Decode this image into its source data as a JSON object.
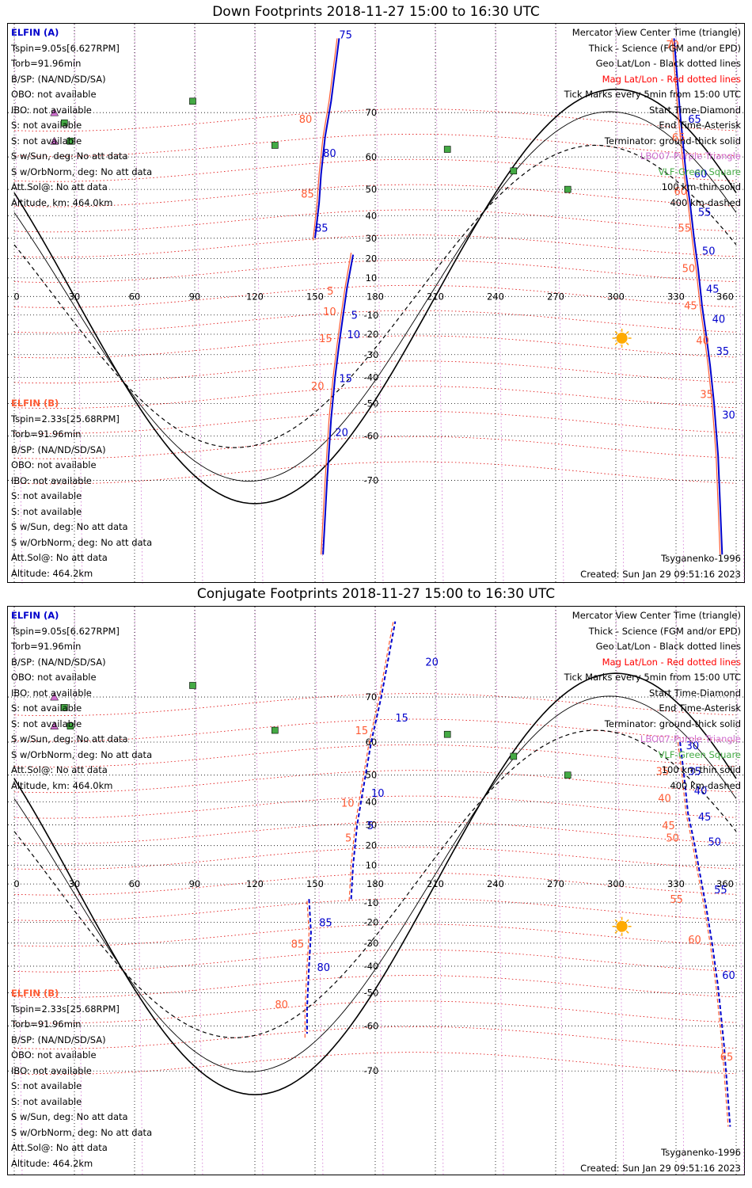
{
  "panels": [
    {
      "title": "Down Footprints 2018-11-27 15:00 to 16:30 UTC",
      "elfin_a": {
        "heading": "ELFIN (A)",
        "lines": [
          "Tspin=9.05s[6.627RPM]",
          "Torb=91.96min",
          "B/SP: (NA/ND/SD/SA)",
          "OBO: not available",
          "IBO: not available",
          "S: not available",
          "S: not available",
          "S w/Sun, deg: No att data",
          "S w/OrbNorm, deg: No att data",
          "Att.Sol@: No att data",
          "Altitude, km: 464.0km"
        ]
      },
      "elfin_b": {
        "heading": "ELFIN (B)",
        "lines": [
          "Tspin=2.33s[25.68RPM]",
          "Torb=91.96min",
          "B/SP: (NA/ND/SD/SA)",
          "OBO: not available",
          "IBO: not available",
          "S: not available",
          "S: not available",
          "S w/Sun, deg: No att data",
          "S w/OrbNorm, deg: No att data",
          "Att.Sol@: No att data",
          "Altitude: 464.2km"
        ]
      },
      "legend": [
        "Mercator View Center Time (triangle)",
        "Thick - Science (FGM and/or EPD)",
        "Geo Lat/Lon - Black dotted lines",
        "Mag Lat/Lon - Red dotted lines",
        "Tick Marks every 5min from 15:00 UTC",
        "Start Time-Diamond",
        "End Time-Asterisk",
        "Terminator: ground-thick solid",
        "LBO07-Purple Triangle",
        "VLF-Green Square",
        "100 km-thin solid",
        "400 km-dashed"
      ],
      "model": "Tsyganenko-1996",
      "created": "Created: Sun Jan 29 09:51:16 2023"
    },
    {
      "title": "Conjugate Footprints 2018-11-27 15:00 to 16:30 UTC",
      "elfin_a": {
        "heading": "ELFIN (A)",
        "lines": [
          "Tspin=9.05s[6.627RPM]",
          "Torb=91.96min",
          "B/SP: (NA/ND/SD/SA)",
          "OBO: not available",
          "IBO: not available",
          "S: not available",
          "S: not available",
          "S w/Sun, deg: No att data",
          "S w/OrbNorm, deg: No att data",
          "Att.Sol@: No att data",
          "Altitude, km: 464.0km"
        ]
      },
      "elfin_b": {
        "heading": "ELFIN (B)",
        "lines": [
          "Tspin=2.33s[25.68RPM]",
          "Torb=91.96min",
          "B/SP: (NA/ND/SD/SA)",
          "OBO: not available",
          "IBO: not available",
          "S: not available",
          "S: not available",
          "S w/Sun, deg: No att data",
          "S w/OrbNorm, deg: No att data",
          "Att.Sol@: No att data",
          "Altitude: 464.2km"
        ]
      },
      "legend": [
        "Mercator View Center Time (triangle)",
        "Thick - Science (FGM and/or EPD)",
        "Geo Lat/Lon - Black dotted lines",
        "Mag Lat/Lon - Red dotted lines",
        "Tick Marks every 5min from 15:00 UTC",
        "Start Time-Diamond",
        "End Time-Asterisk",
        "Terminator: ground-thick solid",
        "LBO07-Purple Triangle",
        "VLF-Green Square",
        "100 km-thin solid",
        "400 km-dashed"
      ],
      "model": "Tsyganenko-1996",
      "created": "Created: Sun Jan 29 09:51:16 2023"
    }
  ],
  "colors": {
    "elfin_a": "#0000cc",
    "elfin_b": "#ff5a33",
    "mag_grid": "#dd0000",
    "geo_grid": "#000000",
    "lon_lines": "#d070d0",
    "vlf": "#44aa44",
    "sun": "#ffaa00"
  },
  "chart_data": [
    {
      "type": "scatter",
      "title": "Down Footprints 2018-11-27 15:00 to 16:30 UTC",
      "x_ticks": [
        0,
        30,
        60,
        90,
        120,
        150,
        180,
        210,
        240,
        270,
        300,
        330,
        360
      ],
      "y_ticks": [
        70,
        60,
        50,
        40,
        30,
        20,
        10,
        -10,
        -20,
        -30,
        -40,
        -50,
        -60,
        -70
      ],
      "xlim": [
        0,
        360
      ],
      "ylim": [
        -80,
        80
      ],
      "grid": true,
      "series": [
        {
          "name": "ELFIN (A)",
          "color": "#0000cc",
          "segments": [
            [
              [
                150,
                30
              ],
              [
                152,
                45
              ],
              [
                153,
                55
              ],
              [
                155,
                65
              ],
              [
                158,
                72
              ],
              [
                162,
                80
              ]
            ],
            [
              [
                169,
                22
              ],
              [
                166,
                5
              ],
              [
                164,
                -10
              ],
              [
                162,
                -25
              ],
              [
                160,
                -40
              ],
              [
                158,
                -55
              ],
              [
                156,
                -70
              ],
              [
                154,
                -80
              ]
            ],
            [
              [
                329,
                80
              ],
              [
                332,
                70
              ],
              [
                335,
                55
              ],
              [
                337,
                45
              ],
              [
                339,
                30
              ],
              [
                341,
                15
              ],
              [
                343,
                -5
              ],
              [
                345,
                -20
              ],
              [
                347,
                -35
              ],
              [
                349,
                -50
              ],
              [
                351,
                -65
              ],
              [
                353,
                -80
              ]
            ]
          ],
          "tick_labels": [
            {
              "t": "75",
              "lon": 162,
              "lat": 80
            },
            {
              "t": "80",
              "lon": 154,
              "lat": 60
            },
            {
              "t": "85",
              "lon": 150,
              "lat": 33
            },
            {
              "t": "5",
              "lon": 168,
              "lat": -12
            },
            {
              "t": "10",
              "lon": 166,
              "lat": -22
            },
            {
              "t": "15",
              "lon": 162,
              "lat": -42
            },
            {
              "t": "20",
              "lon": 160,
              "lat": -60
            },
            {
              "t": "65",
              "lon": 336,
              "lat": 68
            },
            {
              "t": "60",
              "lon": 339,
              "lat": 54
            },
            {
              "t": "55",
              "lon": 341,
              "lat": 40
            },
            {
              "t": "50",
              "lon": 343,
              "lat": 22
            },
            {
              "t": "45",
              "lon": 345,
              "lat": 2
            },
            {
              "t": "40",
              "lon": 348,
              "lat": -14
            },
            {
              "t": "35",
              "lon": 350,
              "lat": -30
            },
            {
              "t": "30",
              "lon": 353,
              "lat": -55
            }
          ]
        },
        {
          "name": "ELFIN (B)",
          "color": "#ff5a33",
          "segments": [
            [
              [
                149,
                29
              ],
              [
                151,
                45
              ],
              [
                152,
                55
              ],
              [
                154,
                65
              ],
              [
                157,
                72
              ],
              [
                161,
                80
              ]
            ],
            [
              [
                168,
                23
              ],
              [
                165,
                5
              ],
              [
                163,
                -10
              ],
              [
                161,
                -25
              ],
              [
                159,
                -40
              ],
              [
                157,
                -55
              ],
              [
                155,
                -70
              ],
              [
                153,
                -80
              ]
            ],
            [
              [
                328,
                80
              ],
              [
                331,
                70
              ],
              [
                334,
                55
              ],
              [
                336,
                45
              ],
              [
                338,
                30
              ],
              [
                340,
                15
              ],
              [
                342,
                -5
              ],
              [
                344,
                -20
              ],
              [
                346,
                -35
              ],
              [
                348,
                -50
              ],
              [
                350,
                -65
              ],
              [
                352,
                -80
              ]
            ]
          ],
          "tick_labels": [
            {
              "t": "80",
              "lon": 142,
              "lat": 68
            },
            {
              "t": "85",
              "lon": 143,
              "lat": 47
            },
            {
              "t": "5",
              "lon": 156,
              "lat": 1
            },
            {
              "t": "10",
              "lon": 154,
              "lat": -10
            },
            {
              "t": "15",
              "lon": 152,
              "lat": -24
            },
            {
              "t": "20",
              "lon": 148,
              "lat": -45
            },
            {
              "t": "70",
              "lon": 325,
              "lat": 79
            },
            {
              "t": "65",
              "lon": 328,
              "lat": 64
            },
            {
              "t": "60",
              "lon": 329,
              "lat": 48
            },
            {
              "t": "55",
              "lon": 331,
              "lat": 33
            },
            {
              "t": "50",
              "lon": 333,
              "lat": 13
            },
            {
              "t": "45",
              "lon": 334,
              "lat": -7
            },
            {
              "t": "40",
              "lon": 340,
              "lat": -25
            },
            {
              "t": "35",
              "lon": 342,
              "lat": -48
            }
          ]
        }
      ]
    },
    {
      "type": "scatter",
      "title": "Conjugate Footprints 2018-11-27 15:00 to 16:30 UTC",
      "x_ticks": [
        0,
        30,
        60,
        90,
        120,
        150,
        180,
        210,
        240,
        270,
        300,
        330,
        360
      ],
      "y_ticks": [
        70,
        60,
        50,
        40,
        30,
        20,
        10,
        -10,
        -20,
        -30,
        -40,
        -50,
        -60,
        -70
      ],
      "xlim": [
        0,
        360
      ],
      "ylim": [
        -80,
        80
      ],
      "grid": true,
      "series": [
        {
          "name": "ELFIN (A)",
          "color": "#0000cc",
          "segments": [
            [
              [
                147,
                -8
              ],
              [
                148,
                -25
              ],
              [
                147,
                -40
              ],
              [
                146,
                -55
              ],
              [
                146,
                -62
              ]
            ],
            [
              [
                168,
                -8
              ],
              [
                169,
                10
              ],
              [
                171,
                30
              ],
              [
                174,
                45
              ],
              [
                178,
                60
              ],
              [
                183,
                70
              ],
              [
                190,
                80
              ]
            ],
            [
              [
                332,
                60
              ],
              [
                334,
                50
              ],
              [
                336,
                35
              ],
              [
                339,
                22
              ],
              [
                342,
                5
              ],
              [
                345,
                -12
              ],
              [
                348,
                -30
              ],
              [
                351,
                -48
              ],
              [
                354,
                -65
              ],
              [
                357,
                -78
              ]
            ]
          ],
          "tick_labels": [
            {
              "t": "85",
              "lon": 152,
              "lat": -22
            },
            {
              "t": "80",
              "lon": 151,
              "lat": -42
            },
            {
              "t": "5",
              "lon": 176,
              "lat": 28
            },
            {
              "t": "10",
              "lon": 178,
              "lat": 42
            },
            {
              "t": "15",
              "lon": 190,
              "lat": 65
            },
            {
              "t": "20",
              "lon": 205,
              "lat": 75
            },
            {
              "t": "30",
              "lon": 335,
              "lat": 58
            },
            {
              "t": "35",
              "lon": 336,
              "lat": 50
            },
            {
              "t": "40",
              "lon": 339,
              "lat": 43
            },
            {
              "t": "45",
              "lon": 341,
              "lat": 32
            },
            {
              "t": "50",
              "lon": 346,
              "lat": 20
            },
            {
              "t": "55",
              "lon": 349,
              "lat": -5
            },
            {
              "t": "60",
              "lon": 353,
              "lat": -45
            }
          ]
        },
        {
          "name": "ELFIN (B)",
          "color": "#ff5a33",
          "segments": [
            [
              [
                146,
                -9
              ],
              [
                147,
                -25
              ],
              [
                146,
                -40
              ],
              [
                145,
                -55
              ],
              [
                145,
                -63
              ]
            ],
            [
              [
                167,
                -9
              ],
              [
                168,
                10
              ],
              [
                170,
                30
              ],
              [
                173,
                45
              ],
              [
                177,
                60
              ],
              [
                182,
                70
              ],
              [
                189,
                80
              ]
            ],
            [
              [
                331,
                60
              ],
              [
                333,
                50
              ],
              [
                335,
                35
              ],
              [
                338,
                22
              ],
              [
                341,
                5
              ],
              [
                344,
                -12
              ],
              [
                347,
                -30
              ],
              [
                350,
                -48
              ],
              [
                353,
                -65
              ],
              [
                356,
                -78
              ]
            ]
          ],
          "tick_labels": [
            {
              "t": "85",
              "lon": 138,
              "lat": -32
            },
            {
              "t": "80",
              "lon": 130,
              "lat": -55
            },
            {
              "t": "5",
              "lon": 165,
              "lat": 22
            },
            {
              "t": "10",
              "lon": 163,
              "lat": 38
            },
            {
              "t": "15",
              "lon": 170,
              "lat": 62
            },
            {
              "t": "35",
              "lon": 320,
              "lat": 50
            },
            {
              "t": "40",
              "lon": 321,
              "lat": 40
            },
            {
              "t": "45",
              "lon": 323,
              "lat": 28
            },
            {
              "t": "50",
              "lon": 325,
              "lat": 22
            },
            {
              "t": "55",
              "lon": 327,
              "lat": -10
            },
            {
              "t": "60",
              "lon": 336,
              "lat": -30
            },
            {
              "t": "65",
              "lon": 352,
              "lat": -68
            }
          ]
        }
      ]
    }
  ]
}
